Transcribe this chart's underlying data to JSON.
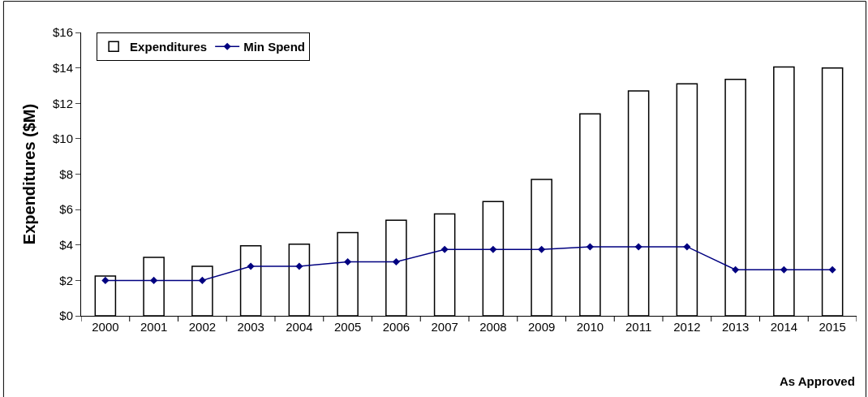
{
  "chart_data": {
    "type": "bar",
    "ylabel": "Expenditures ($M)",
    "categories": [
      "2000",
      "2001",
      "2002",
      "2003",
      "2004",
      "2005",
      "2006",
      "2007",
      "2008",
      "2009",
      "2010",
      "2011",
      "2012",
      "2013",
      "2014",
      "2015"
    ],
    "series": [
      {
        "name": "Expenditures",
        "color": "#ffffff",
        "values": [
          2.25,
          3.3,
          2.8,
          3.95,
          4.05,
          4.7,
          5.4,
          5.75,
          6.45,
          7.7,
          11.4,
          12.7,
          13.1,
          13.35,
          14.05,
          14.0
        ]
      },
      {
        "name": "Min Spend",
        "type": "line",
        "color": "#000080",
        "marker": "diamond",
        "values": [
          2.0,
          2.0,
          2.0,
          2.8,
          2.8,
          3.05,
          3.05,
          3.75,
          3.75,
          3.75,
          3.9,
          3.9,
          3.9,
          2.6,
          2.6,
          2.6
        ]
      }
    ],
    "ylim": [
      0,
      16
    ],
    "yticks": [
      {
        "value": 0,
        "label": "$0"
      },
      {
        "value": 2,
        "label": "$2"
      },
      {
        "value": 4,
        "label": "$4"
      },
      {
        "value": 6,
        "label": "$6"
      },
      {
        "value": 8,
        "label": "$8"
      },
      {
        "value": 10,
        "label": "$10"
      },
      {
        "value": 12,
        "label": "$12"
      },
      {
        "value": 14,
        "label": "$14"
      },
      {
        "value": 16,
        "label": "$16"
      }
    ],
    "annotations": [
      "As Approved"
    ],
    "legend": "top left",
    "grid": false
  }
}
